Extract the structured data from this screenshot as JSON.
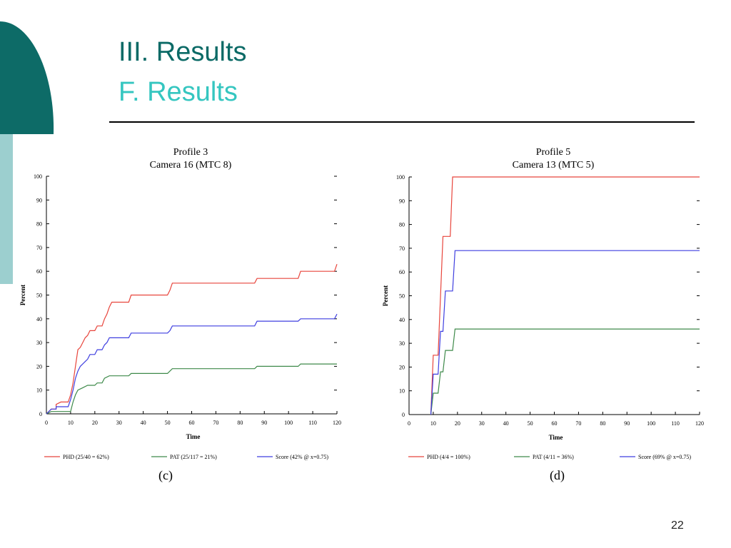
{
  "slide": {
    "title": "III. Results",
    "subtitle": "F. Results",
    "page_number": "22",
    "colors": {
      "title": "#0b6a66",
      "subtitle": "#35c6c0",
      "decor_dark": "#0d6b67",
      "decor_light": "#9ccfcf"
    }
  },
  "chart_data": [
    {
      "type": "line",
      "title": "Profile 3",
      "subtitle": "Camera 16 (MTC 8)",
      "xlabel": "Time",
      "ylabel": "Percent",
      "xlim": [
        0,
        120
      ],
      "ylim": [
        0,
        100
      ],
      "xticks": [
        0,
        10,
        20,
        30,
        40,
        50,
        60,
        70,
        80,
        90,
        100,
        110,
        120
      ],
      "yticks": [
        0,
        10,
        20,
        30,
        40,
        50,
        60,
        70,
        80,
        90,
        100
      ],
      "caption": "(c)",
      "series": [
        {
          "name": "PHD (25/40 = 62%)",
          "color": "#e8453c",
          "points": [
            [
              0,
              0
            ],
            [
              1,
              1
            ],
            [
              2,
              2
            ],
            [
              4,
              2
            ],
            [
              4,
              4
            ],
            [
              6,
              5
            ],
            [
              9,
              5
            ],
            [
              10,
              8
            ],
            [
              11,
              13
            ],
            [
              12,
              20
            ],
            [
              13,
              27
            ],
            [
              14,
              28
            ],
            [
              15,
              30
            ],
            [
              16,
              32
            ],
            [
              17,
              33
            ],
            [
              18,
              35
            ],
            [
              20,
              35
            ],
            [
              21,
              37
            ],
            [
              23,
              37
            ],
            [
              24,
              40
            ],
            [
              25,
              42
            ],
            [
              26,
              45
            ],
            [
              27,
              47
            ],
            [
              34,
              47
            ],
            [
              35,
              50
            ],
            [
              50,
              50
            ],
            [
              51,
              52
            ],
            [
              52,
              55
            ],
            [
              86,
              55
            ],
            [
              87,
              57
            ],
            [
              104,
              57
            ],
            [
              105,
              60
            ],
            [
              119,
              60
            ],
            [
              120,
              63
            ]
          ]
        },
        {
          "name": "PAT (25/117 = 21%)",
          "color": "#3e8a4a",
          "points": [
            [
              0,
              0
            ],
            [
              2,
              1
            ],
            [
              10,
              1
            ],
            [
              11,
              5
            ],
            [
              12,
              8
            ],
            [
              13,
              10
            ],
            [
              15,
              11
            ],
            [
              17,
              12
            ],
            [
              20,
              12
            ],
            [
              21,
              13
            ],
            [
              23,
              13
            ],
            [
              24,
              15
            ],
            [
              26,
              16
            ],
            [
              34,
              16
            ],
            [
              35,
              17
            ],
            [
              50,
              17
            ],
            [
              51,
              18
            ],
            [
              52,
              19
            ],
            [
              86,
              19
            ],
            [
              87,
              20
            ],
            [
              104,
              20
            ],
            [
              105,
              21
            ],
            [
              120,
              21
            ]
          ]
        },
        {
          "name": "Score (42% @ x=0.75)",
          "color": "#3f3fe0",
          "points": [
            [
              0,
              0
            ],
            [
              1,
              1
            ],
            [
              2,
              2
            ],
            [
              4,
              2
            ],
            [
              4,
              3
            ],
            [
              9,
              3
            ],
            [
              10,
              6
            ],
            [
              11,
              10
            ],
            [
              12,
              15
            ],
            [
              13,
              18
            ],
            [
              14,
              20
            ],
            [
              15,
              21
            ],
            [
              16,
              22
            ],
            [
              17,
              23
            ],
            [
              18,
              25
            ],
            [
              20,
              25
            ],
            [
              21,
              27
            ],
            [
              23,
              27
            ],
            [
              24,
              29
            ],
            [
              25,
              30
            ],
            [
              26,
              32
            ],
            [
              34,
              32
            ],
            [
              35,
              34
            ],
            [
              50,
              34
            ],
            [
              51,
              35
            ],
            [
              52,
              37
            ],
            [
              86,
              37
            ],
            [
              87,
              39
            ],
            [
              104,
              39
            ],
            [
              105,
              40
            ],
            [
              119,
              40
            ],
            [
              120,
              42
            ]
          ]
        }
      ]
    },
    {
      "type": "line",
      "title": "Profile 5",
      "subtitle": "Camera 13 (MTC 5)",
      "xlabel": "Time",
      "ylabel": "Percent",
      "xlim": [
        0,
        120
      ],
      "ylim": [
        0,
        100
      ],
      "xticks": [
        0,
        10,
        20,
        30,
        40,
        50,
        60,
        70,
        80,
        90,
        100,
        110,
        120
      ],
      "yticks": [
        0,
        10,
        20,
        30,
        40,
        50,
        60,
        70,
        80,
        90,
        100
      ],
      "caption": "(d)",
      "series": [
        {
          "name": "PHD (4/4 = 100%)",
          "color": "#e8453c",
          "points": [
            [
              9,
              0
            ],
            [
              10,
              25
            ],
            [
              12,
              25
            ],
            [
              13,
              50
            ],
            [
              14,
              75
            ],
            [
              17,
              75
            ],
            [
              18,
              100
            ],
            [
              120,
              100
            ]
          ]
        },
        {
          "name": "PAT (4/11 = 36%)",
          "color": "#3e8a4a",
          "points": [
            [
              9,
              0
            ],
            [
              10,
              9
            ],
            [
              12,
              9
            ],
            [
              13,
              18
            ],
            [
              14,
              18
            ],
            [
              15,
              27
            ],
            [
              18,
              27
            ],
            [
              19,
              36
            ],
            [
              120,
              36
            ]
          ]
        },
        {
          "name": "Score (69% @ x=0.75)",
          "color": "#3f3fe0",
          "points": [
            [
              9,
              0
            ],
            [
              10,
              17
            ],
            [
              12,
              17
            ],
            [
              13,
              35
            ],
            [
              14,
              35
            ],
            [
              15,
              52
            ],
            [
              18,
              52
            ],
            [
              19,
              69
            ],
            [
              120,
              69
            ]
          ]
        }
      ]
    }
  ]
}
